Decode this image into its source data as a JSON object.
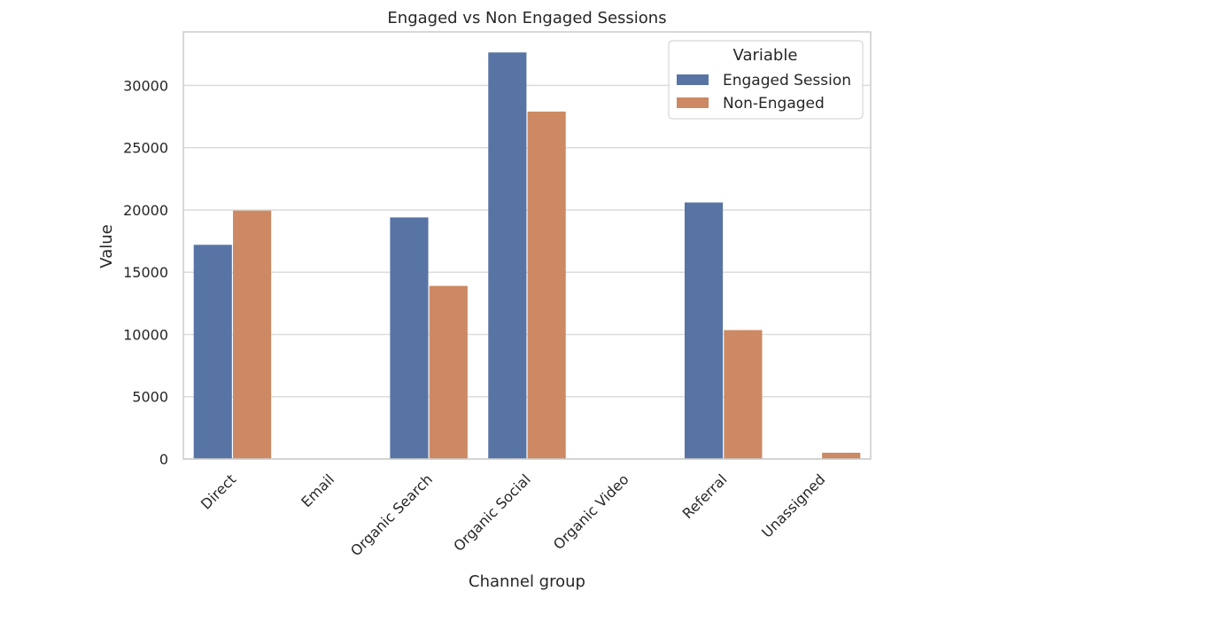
{
  "chart_data": {
    "type": "bar",
    "title": "Engaged vs Non Engaged Sessions",
    "xlabel": "Channel group",
    "ylabel": "Value",
    "categories": [
      "Direct",
      "Email",
      "Organic Search",
      "Organic Social",
      "Organic Video",
      "Referral",
      "Unassigned"
    ],
    "series": [
      {
        "name": "Engaged Session",
        "color": "#5874a5",
        "values": [
          17200,
          10,
          19400,
          32650,
          10,
          20600,
          30
        ]
      },
      {
        "name": "Non-Engaged",
        "color": "#cc8963",
        "values": [
          19950,
          20,
          13900,
          27900,
          20,
          10350,
          500
        ]
      }
    ],
    "ylim": [
      0,
      34300
    ],
    "yticks": [
      0,
      5000,
      10000,
      15000,
      20000,
      25000,
      30000
    ],
    "grid": true,
    "legend": {
      "title": "Variable",
      "placement": "top-right"
    }
  }
}
